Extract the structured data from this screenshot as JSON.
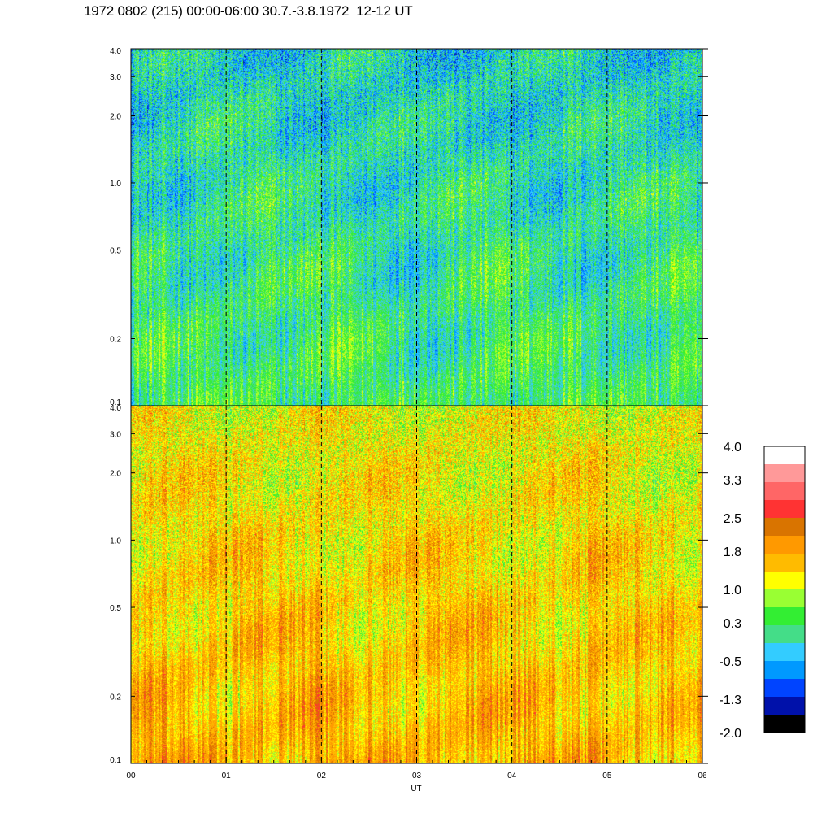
{
  "title": "1972 0802 (215) 00:00-06:00 30.7.-3.8.1972  12-12 UT",
  "chart_data": [
    {
      "type": "heatmap",
      "panel": "top",
      "xlabel": "",
      "ylabel": "",
      "x_ticks": [
        "00",
        "01",
        "02",
        "03",
        "04",
        "05",
        "06"
      ],
      "x_range_hours": [
        0,
        6
      ],
      "y_scale": "log",
      "y_range": [
        0.1,
        4.0
      ],
      "y_ticks": [
        {
          "value": 0.1,
          "label": "0.1"
        },
        {
          "value": 0.2,
          "label": "0.2"
        },
        {
          "value": 0.5,
          "label": "0.5"
        },
        {
          "value": 1.0,
          "label": "1.0"
        },
        {
          "value": 2.0,
          "label": "2.0"
        },
        {
          "value": 3.0,
          "label": "3.0"
        },
        {
          "value": 4.0,
          "label": "4.0"
        }
      ],
      "hour_markers": [
        1,
        2,
        3,
        4,
        5
      ],
      "typical_level_low_freq": 0.3,
      "typical_level_high_freq": -0.2
    },
    {
      "type": "heatmap",
      "panel": "bottom",
      "xlabel": "UT",
      "ylabel": "",
      "x_ticks": [
        "00",
        "01",
        "02",
        "03",
        "04",
        "05",
        "06"
      ],
      "x_range_hours": [
        0,
        6
      ],
      "y_scale": "log",
      "y_range": [
        0.1,
        4.0
      ],
      "y_ticks": [
        {
          "value": 0.1,
          "label": "0.1"
        },
        {
          "value": 0.2,
          "label": "0.2"
        },
        {
          "value": 0.5,
          "label": "0.5"
        },
        {
          "value": 1.0,
          "label": "1.0"
        },
        {
          "value": 2.0,
          "label": "2.0"
        },
        {
          "value": 3.0,
          "label": "3.0"
        },
        {
          "value": 4.0,
          "label": "4.0"
        }
      ],
      "hour_markers": [
        1,
        2,
        3,
        4,
        5
      ],
      "typical_level_low_freq": 1.7,
      "typical_level_high_freq": 1.2
    }
  ],
  "colorbar": {
    "labels": [
      "4.0",
      "3.3",
      "2.5",
      "1.8",
      "1.0",
      "0.3",
      "-0.5",
      "-1.3",
      "-2.0"
    ],
    "min": -2.0,
    "max": 4.0,
    "colors_top_to_bottom": [
      "#ffffff",
      "#ff9999",
      "#ff6666",
      "#ff3333",
      "#d97400",
      "#ff9900",
      "#ffbb00",
      "#ffff00",
      "#99ff33",
      "#33ee33",
      "#44dd88",
      "#33ccff",
      "#0099ff",
      "#0044ff",
      "#0011aa",
      "#000000"
    ]
  }
}
